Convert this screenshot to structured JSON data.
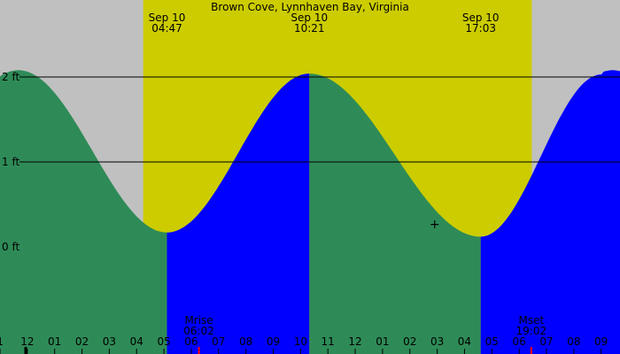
{
  "chart_data": {
    "type": "area",
    "title": "Brown Cove, Lynnhaven Bay, Virginia",
    "x_unit": "hour",
    "x_range": [
      20.97,
      33.68
    ],
    "ylim": [
      -0.75,
      3.0
    ],
    "y_ticks": [
      {
        "value": 0,
        "label": "0 ft"
      },
      {
        "value": 1,
        "label": "1 ft"
      },
      {
        "value": 2,
        "label": "2 ft"
      }
    ],
    "grid": true,
    "day_period": {
      "start": 27.85,
      "end": 43.05
    },
    "events": [
      {
        "date": "Sep 10",
        "time": "04:47",
        "hour": 28.78,
        "type": "low",
        "height": 0.17
      },
      {
        "date": "Sep 10",
        "time": "10:21",
        "hour": 34.35,
        "type": "high",
        "height": 2.04
      },
      {
        "date": "Sep 10",
        "time": "17:03",
        "hour": 41.05,
        "type": "low",
        "height": 0.12
      }
    ],
    "curve_points": [
      {
        "hour": 22.97,
        "height": 2.08
      },
      {
        "hour": 28.78,
        "height": 0.17
      },
      {
        "hour": 34.35,
        "height": 2.04
      },
      {
        "hour": 41.05,
        "height": 0.12
      },
      {
        "hour": 45.78,
        "height": 2.03
      }
    ],
    "series": [
      {
        "state": "falling",
        "color": "#2e8b57"
      },
      {
        "state": "rising",
        "color": "#0000ff"
      }
    ],
    "x_tick_labels": [
      "1",
      "12",
      "01",
      "02",
      "03",
      "04",
      "05",
      "06",
      "07",
      "08",
      "09",
      "10",
      "11",
      "12",
      "01",
      "02",
      "03",
      "04",
      "05",
      "06",
      "07",
      "08",
      "09"
    ],
    "moon": [
      {
        "name": "Mrise",
        "time": "06:02",
        "hour": 30.03
      },
      {
        "name": "Mset",
        "time": "19:02",
        "hour": 43.03
      }
    ],
    "marker": {
      "hour": 39.25,
      "height": 0.27,
      "symbol": "+"
    },
    "colors": {
      "night": "#c0c0c0",
      "day": "#cccc00",
      "falling": "#2e8b57",
      "rising": "#0000ff",
      "grid": "#000000",
      "moon_tick": "#ff0000"
    }
  }
}
